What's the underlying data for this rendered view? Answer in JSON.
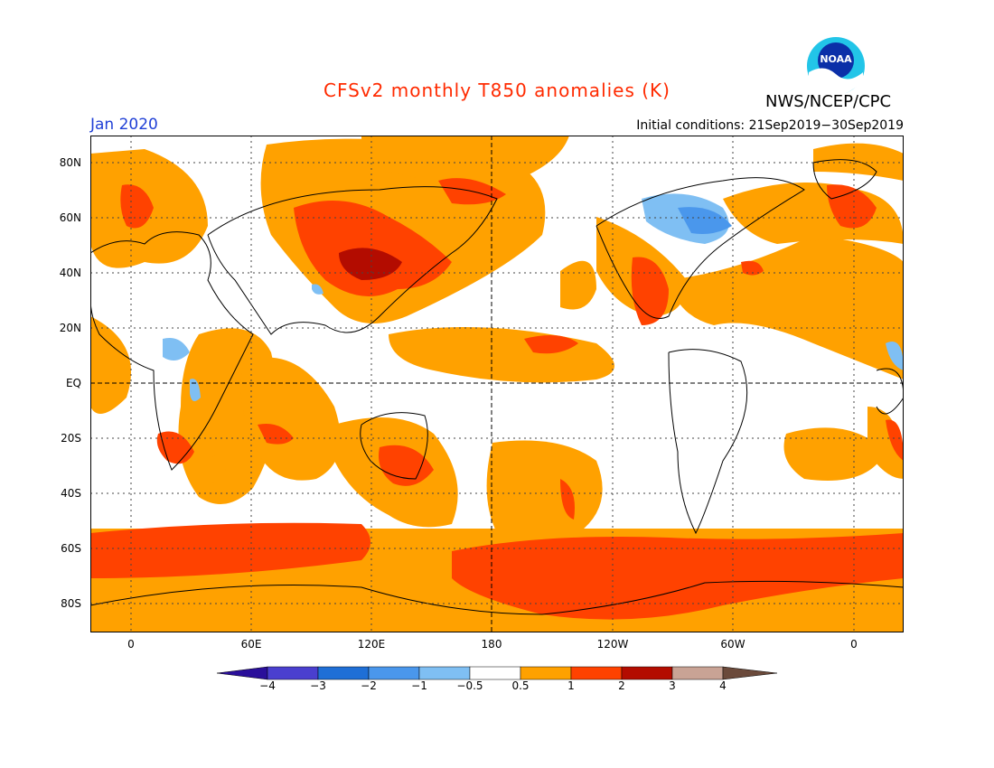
{
  "title": "CFSv2 monthly T850 anomalies (K)",
  "org": "NWS/NCEP/CPC",
  "logo_text": "NOAA",
  "month": "Jan 2020",
  "init": "Initial conditions: 21Sep2019−30Sep2019",
  "colors": {
    "title": "#ff2a00",
    "month": "#1f3fd6",
    "neg4": "#2a0f9a",
    "neg3": "#4a3fcf",
    "neg2": "#1f6fd6",
    "neg1": "#4a97ec",
    "neg05": "#7fbff3",
    "zero": "#ffffff",
    "pos05": "#ffa100",
    "pos1": "#ff4200",
    "pos2": "#b30c00",
    "pos3": "#c9a395",
    "pos4": "#6b4a3b"
  },
  "lat_labels": [
    "80N",
    "60N",
    "40N",
    "20N",
    "EQ",
    "20S",
    "40S",
    "60S",
    "80S"
  ],
  "lon_labels": [
    "0",
    "60E",
    "120E",
    "180",
    "120W",
    "60W",
    "0"
  ],
  "colorbar_labels": [
    "−4",
    "−3",
    "−2",
    "−1",
    "−0.5",
    "0.5",
    "1",
    "2",
    "3",
    "4"
  ]
}
